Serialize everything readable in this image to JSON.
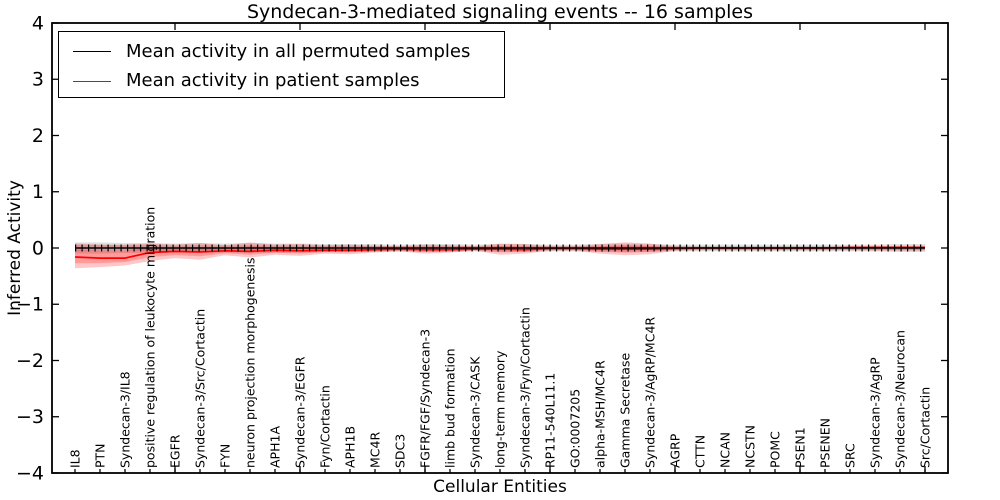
{
  "chart_data": {
    "type": "line",
    "title": "Syndecan-3-mediated signaling events -- 16 samples",
    "xlabel": "Cellular Entities",
    "ylabel": "Inferred Activity",
    "ylim": [
      -4,
      4
    ],
    "yticks": [
      -4,
      -3,
      -2,
      -1,
      0,
      1,
      2,
      3,
      4
    ],
    "x_major_tick_every": 5,
    "grid": false,
    "legend_position": "upper left",
    "categories": [
      "IL8",
      "PTN",
      "Syndecan-3/IL8",
      "positive regulation of leukocyte migration",
      "EGFR",
      "Syndecan-3/Src/Cortactin",
      "FYN",
      "neuron projection morphogenesis",
      "APH1A",
      "Syndecan-3/EGFR",
      "Fyn/Cortactin",
      "APH1B",
      "MC4R",
      "SDC3",
      "FGFR/FGF/Syndecan-3",
      "limb bud formation",
      "Syndecan-3/CASK",
      "long-term memory",
      "Syndecan-3/Fyn/Cortactin",
      "RP11-540L11.1",
      "GO:0007205",
      "alpha-MSH/MC4R",
      "Gamma Secretase",
      "Syndecan-3/AgRP/MC4R",
      "AGRP",
      "CTTN",
      "NCAN",
      "NCSTN",
      "POMC",
      "PSEN1",
      "PSENEN",
      "SRC",
      "Syndecan-3/AgRP",
      "Syndecan-3/Neurocan",
      "Src/Cortactin"
    ],
    "series": [
      {
        "name": "Mean activity in all permuted samples",
        "color": "#000000",
        "line_style": "solid-with-tick-markers",
        "band_color": "rgba(0,0,0,0.12)",
        "values": [
          0,
          0,
          0,
          0,
          0,
          0,
          0,
          0,
          0,
          0,
          0,
          0,
          0,
          0,
          0,
          0,
          0,
          0,
          0,
          0,
          0,
          0,
          0,
          0,
          0,
          0,
          0,
          0,
          0,
          0,
          0,
          0,
          0,
          0,
          0
        ],
        "band_upper": [
          0.1,
          0.1,
          0.09,
          0.09,
          0.08,
          0.09,
          0.08,
          0.09,
          0.08,
          0.08,
          0.07,
          0.07,
          0.07,
          0.06,
          0.07,
          0.07,
          0.06,
          0.07,
          0.07,
          0.06,
          0.06,
          0.07,
          0.08,
          0.07,
          0.06,
          0.06,
          0.06,
          0.06,
          0.06,
          0.06,
          0.06,
          0.06,
          0.06,
          0.07,
          0.07
        ],
        "band_lower": [
          -0.1,
          -0.1,
          -0.09,
          -0.09,
          -0.08,
          -0.09,
          -0.08,
          -0.09,
          -0.08,
          -0.08,
          -0.07,
          -0.07,
          -0.07,
          -0.06,
          -0.07,
          -0.07,
          -0.06,
          -0.07,
          -0.07,
          -0.06,
          -0.06,
          -0.07,
          -0.08,
          -0.07,
          -0.06,
          -0.06,
          -0.06,
          -0.06,
          -0.06,
          -0.06,
          -0.06,
          -0.06,
          -0.06,
          -0.07,
          -0.07
        ]
      },
      {
        "name": "Mean activity in patient samples",
        "color": "#ff0000",
        "line_style": "solid",
        "band_color": "rgba(255,0,0,0.22)",
        "values": [
          -0.16,
          -0.18,
          -0.18,
          -0.08,
          -0.06,
          -0.07,
          -0.05,
          -0.06,
          -0.04,
          -0.05,
          -0.04,
          -0.04,
          -0.03,
          -0.02,
          -0.03,
          -0.03,
          -0.02,
          -0.02,
          -0.03,
          -0.01,
          -0.01,
          -0.02,
          -0.02,
          -0.02,
          -0.01,
          0,
          0,
          0,
          0,
          0,
          0,
          0.01,
          0.01,
          0.01,
          0.01
        ],
        "band_upper": [
          0.08,
          0.06,
          0.06,
          0.08,
          0.06,
          0.09,
          0.05,
          0.1,
          0.06,
          0.07,
          0.05,
          0.06,
          0.04,
          0.03,
          0.06,
          0.05,
          0.03,
          0.08,
          0.07,
          0.03,
          0.03,
          0.07,
          0.1,
          0.08,
          0.03,
          0.02,
          0.02,
          0.02,
          0.02,
          0.02,
          0.02,
          0.02,
          0.03,
          0.03,
          0.03
        ],
        "band_lower": [
          -0.36,
          -0.34,
          -0.31,
          -0.23,
          -0.18,
          -0.21,
          -0.13,
          -0.17,
          -0.12,
          -0.14,
          -0.1,
          -0.11,
          -0.08,
          -0.06,
          -0.1,
          -0.08,
          -0.05,
          -0.12,
          -0.1,
          -0.05,
          -0.05,
          -0.1,
          -0.13,
          -0.11,
          -0.05,
          -0.04,
          -0.04,
          -0.04,
          -0.04,
          -0.04,
          -0.04,
          -0.04,
          -0.05,
          -0.05,
          -0.05
        ]
      }
    ]
  }
}
